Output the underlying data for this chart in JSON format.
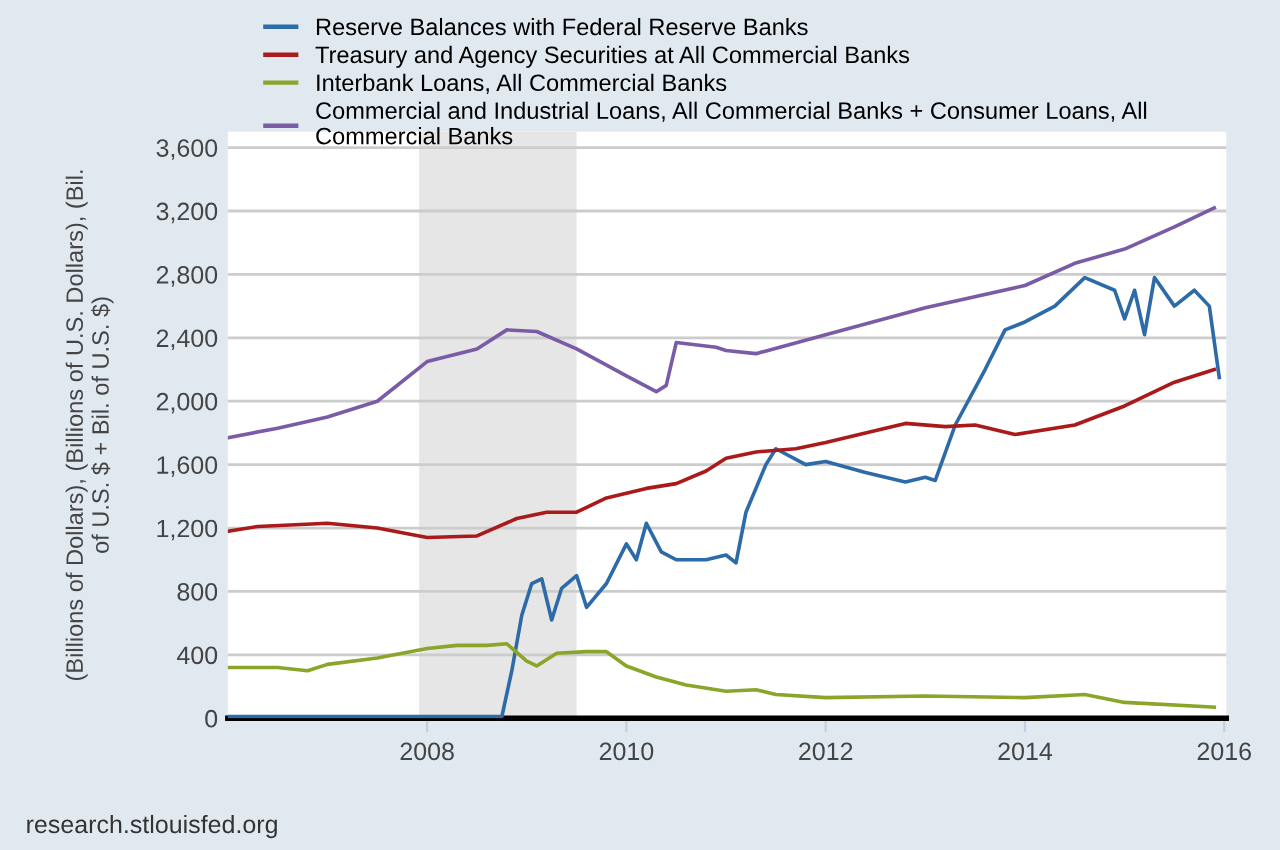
{
  "chart_data": {
    "type": "line",
    "ylabel": "(Billions of Dollars), (Billions of U.S. Dollars), (Bil. of U.S. $ + Bil. of U.S. $)",
    "annotations": [
      "research.stlouisfed.org"
    ],
    "legend": "top",
    "grid": "y",
    "xlim": [
      2006.0,
      2016.02
    ],
    "xticks": [
      2008,
      2010,
      2012,
      2014,
      2016
    ],
    "ylim": [
      0,
      3700
    ],
    "yticks": [
      0,
      400,
      800,
      {
        "value": 1200,
        "label": "1,200"
      },
      {
        "value": 1600,
        "label": "1,600"
      },
      {
        "value": 2000,
        "label": "2,000"
      },
      {
        "value": 2400,
        "label": "2,400"
      },
      {
        "value": 2800,
        "label": "2,800"
      },
      {
        "value": 3200,
        "label": "3,200"
      },
      {
        "value": 3600,
        "label": "3,600"
      }
    ],
    "bands": [
      {
        "axis": "x",
        "from": 2007.92,
        "to": 2009.5,
        "color": "#e6e6e6"
      }
    ],
    "series": [
      {
        "name": "Reserve Balances with Federal Reserve Banks",
        "color": "#2d6aa8",
        "x": [
          2006.0,
          2007.0,
          2008.0,
          2008.75,
          2008.85,
          2008.95,
          2009.05,
          2009.15,
          2009.25,
          2009.35,
          2009.5,
          2009.6,
          2009.8,
          2010.0,
          2010.1,
          2010.2,
          2010.35,
          2010.5,
          2010.8,
          2011.0,
          2011.1,
          2011.2,
          2011.4,
          2011.5,
          2011.8,
          2012.0,
          2012.4,
          2012.8,
          2013.0,
          2013.1,
          2013.3,
          2013.6,
          2013.8,
          2014.0,
          2014.3,
          2014.6,
          2014.9,
          2015.0,
          2015.1,
          2015.2,
          2015.3,
          2015.5,
          2015.7,
          2015.85,
          2015.95
        ],
        "values": [
          10,
          10,
          10,
          10,
          300,
          650,
          850,
          880,
          620,
          820,
          900,
          700,
          850,
          1100,
          1000,
          1230,
          1050,
          1000,
          1000,
          1030,
          980,
          1300,
          1600,
          1700,
          1600,
          1620,
          1550,
          1490,
          1520,
          1500,
          1850,
          2200,
          2450,
          2500,
          2600,
          2780,
          2700,
          2520,
          2700,
          2420,
          2780,
          2600,
          2700,
          2600,
          2150
        ]
      },
      {
        "name": "Treasury and Agency Securities at All Commercial Banks",
        "color": "#aa1a1a",
        "x": [
          2006.0,
          2006.3,
          2007.0,
          2007.5,
          2008.0,
          2008.5,
          2008.9,
          2009.2,
          2009.5,
          2009.8,
          2010.2,
          2010.5,
          2010.8,
          2011.0,
          2011.3,
          2011.7,
          2012.0,
          2012.4,
          2012.8,
          2013.2,
          2013.5,
          2013.9,
          2014.5,
          2015.0,
          2015.3,
          2015.5,
          2015.9
        ],
        "values": [
          1180,
          1210,
          1230,
          1200,
          1140,
          1150,
          1260,
          1300,
          1300,
          1390,
          1450,
          1480,
          1560,
          1640,
          1680,
          1700,
          1740,
          1800,
          1860,
          1840,
          1850,
          1790,
          1850,
          1970,
          2060,
          2120,
          2200
        ]
      },
      {
        "name": "Interbank Loans, All Commercial Banks",
        "color": "#8aa52a",
        "x": [
          2006.0,
          2006.5,
          2006.8,
          2007.0,
          2007.5,
          2008.0,
          2008.3,
          2008.6,
          2008.8,
          2009.0,
          2009.1,
          2009.3,
          2009.6,
          2009.8,
          2010.0,
          2010.3,
          2010.6,
          2011.0,
          2011.3,
          2011.5,
          2012.0,
          2013.0,
          2014.0,
          2014.6,
          2015.0,
          2015.9
        ],
        "values": [
          320,
          320,
          300,
          340,
          380,
          440,
          460,
          460,
          470,
          360,
          330,
          410,
          420,
          420,
          330,
          260,
          210,
          170,
          180,
          150,
          130,
          140,
          130,
          150,
          100,
          70
        ]
      },
      {
        "name": "Commercial and Industrial Loans, All Commercial Banks + Consumer Loans, All Commercial Banks",
        "color": "#7a5ca6",
        "x": [
          2006.0,
          2006.5,
          2007.0,
          2007.5,
          2008.0,
          2008.5,
          2008.8,
          2009.1,
          2009.5,
          2010.0,
          2010.3,
          2010.4,
          2010.5,
          2010.9,
          2011.0,
          2011.3,
          2012.0,
          2013.0,
          2014.0,
          2014.5,
          2015.0,
          2015.5,
          2015.9
        ],
        "values": [
          1770,
          1830,
          1900,
          2000,
          2250,
          2330,
          2450,
          2440,
          2330,
          2160,
          2060,
          2100,
          2370,
          2340,
          2320,
          2300,
          2420,
          2590,
          2730,
          2870,
          2960,
          3100,
          3220
        ]
      }
    ]
  }
}
